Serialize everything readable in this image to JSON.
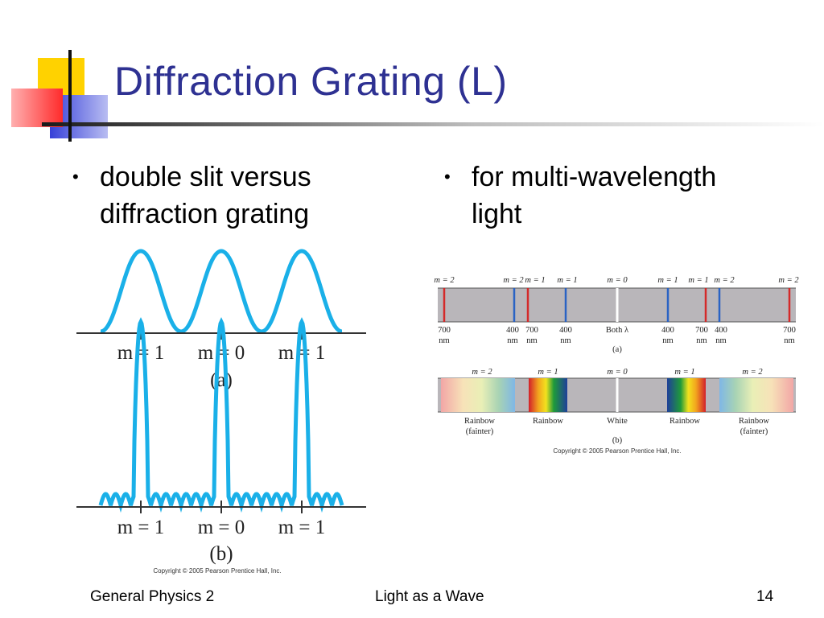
{
  "slide": {
    "title": "Diffraction Grating (L)",
    "accent_colors": {
      "title": "#2e3192",
      "yellow": "#ffd200",
      "red": "#ff3b3b",
      "blue": "#2e3bd0"
    }
  },
  "bullets": {
    "left": {
      "line1": "double slit versus",
      "line2": "diffraction grating"
    },
    "right": {
      "line1": "for multi-wavelength",
      "line2": "light"
    }
  },
  "figure_left": {
    "panel_a": {
      "labels": [
        "m = 1",
        "m = 0",
        "m = 1"
      ],
      "caption": "(a)"
    },
    "panel_b": {
      "labels": [
        "m = 1",
        "m = 0",
        "m = 1"
      ],
      "caption": "(b)"
    },
    "copyright": "Copyright © 2005 Pearson Prentice Hall, Inc."
  },
  "figure_right": {
    "panel_a": {
      "orders_top": [
        "m = 2",
        "m = 2",
        "m = 1",
        "m = 1",
        "m = 0",
        "m = 1",
        "m = 1",
        "m = 2",
        "m = 2"
      ],
      "wavelengths": [
        {
          "value": "700",
          "unit": "nm"
        },
        {
          "value": "400",
          "unit": "nm"
        },
        {
          "value": "700",
          "unit": "nm"
        },
        {
          "value": "400",
          "unit": "nm"
        },
        {
          "value": "Both λ",
          "unit": ""
        },
        {
          "value": "400",
          "unit": "nm"
        },
        {
          "value": "700",
          "unit": "nm"
        },
        {
          "value": "400",
          "unit": "nm"
        },
        {
          "value": "700",
          "unit": "nm"
        }
      ],
      "caption": "(a)"
    },
    "panel_b": {
      "orders_top": [
        "m = 2",
        "m = 1",
        "m = 0",
        "m = 1",
        "m = 2"
      ],
      "labels": [
        {
          "line1": "Rainbow",
          "line2": "(fainter)"
        },
        {
          "line1": "Rainbow",
          "line2": ""
        },
        {
          "line1": "White",
          "line2": ""
        },
        {
          "line1": "Rainbow",
          "line2": ""
        },
        {
          "line1": "Rainbow",
          "line2": "(fainter)"
        }
      ],
      "caption": "(b)"
    },
    "copyright": "Copyright © 2005 Pearson Prentice Hall, Inc."
  },
  "footer": {
    "left": "General Physics 2",
    "center": "Light as a Wave",
    "page": "14"
  }
}
